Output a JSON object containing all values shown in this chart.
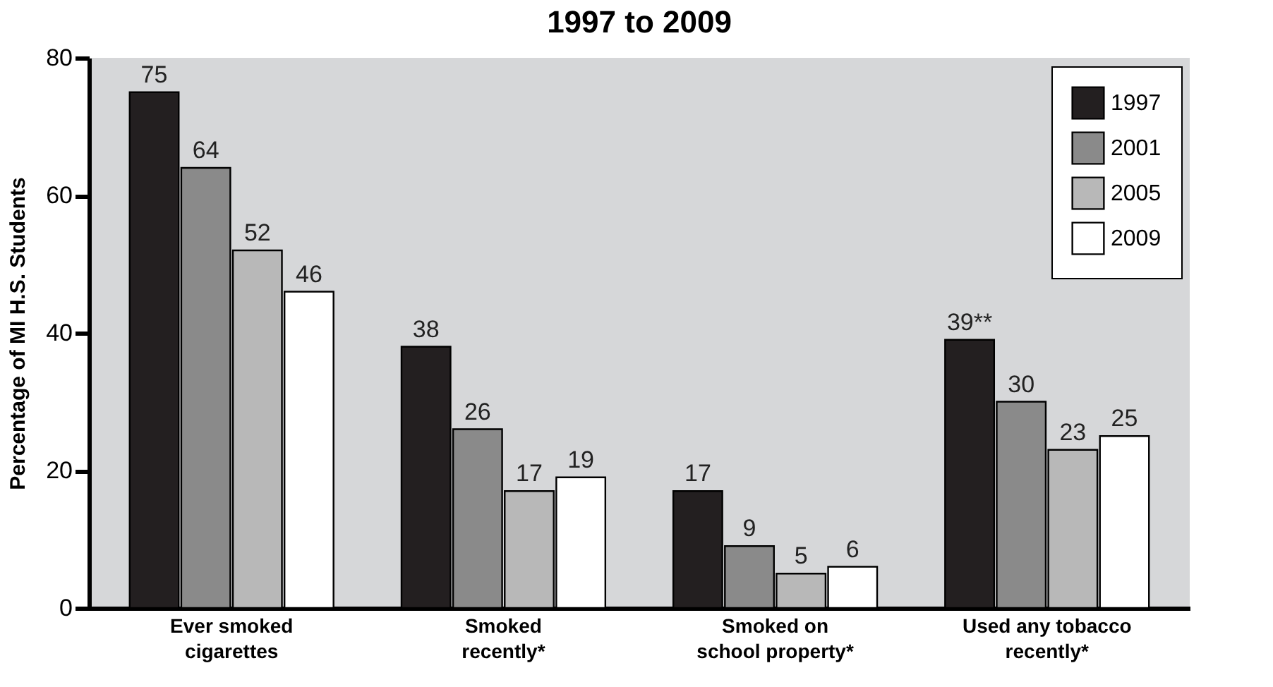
{
  "chart_data": {
    "type": "bar",
    "title": "1997 to 2009",
    "ylabel": "Percentage of MI H.S. Students",
    "categories": [
      "Ever smoked cigarettes",
      "Smoked recently*",
      "Smoked on school property*",
      "Used any tobacco recently*"
    ],
    "series": [
      {
        "name": "1997",
        "color": "#231f20",
        "values": [
          75,
          38,
          17,
          39
        ],
        "value_labels": [
          "75",
          "38",
          "17",
          "39**"
        ]
      },
      {
        "name": "2001",
        "color": "#8a8a8a",
        "values": [
          64,
          26,
          9,
          30
        ],
        "value_labels": [
          "64",
          "26",
          "9",
          "30"
        ]
      },
      {
        "name": "2005",
        "color": "#b8b8b8",
        "values": [
          52,
          17,
          5,
          23
        ],
        "value_labels": [
          "52",
          "17",
          "5",
          "23"
        ]
      },
      {
        "name": "2009",
        "color": "#ffffff",
        "values": [
          46,
          19,
          6,
          25
        ],
        "value_labels": [
          "46",
          "19",
          "6",
          "25"
        ]
      }
    ],
    "ylim": [
      0,
      80
    ],
    "yticks": [
      0,
      20,
      40,
      60,
      80
    ],
    "grid": false,
    "legend": "top right"
  }
}
